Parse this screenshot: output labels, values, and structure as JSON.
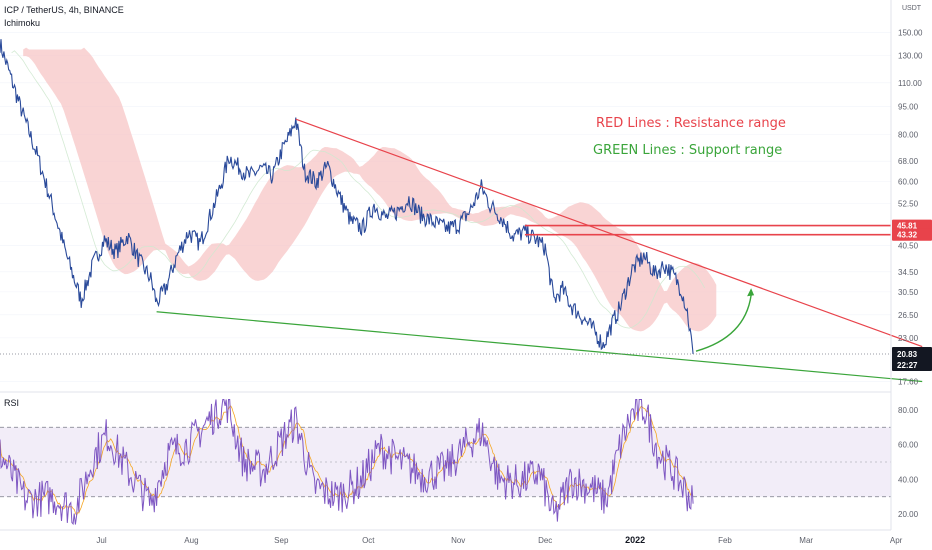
{
  "header": {
    "title": "ICP / TetherUS, 4h, BINANCE",
    "indicator": "Ichimoku",
    "rsi_label": "RSI",
    "currency": "USDT"
  },
  "annotations": {
    "red_text": "RED Lines : Resistance range",
    "green_text": "GREEN Lines : Support range"
  },
  "colors": {
    "red": "#e8434b",
    "green": "#3aa53a",
    "price": "#2a4a9a",
    "cloud": "#f7c6c6",
    "cloud_green": "#cfe8cf",
    "rsi": "#7e57c2",
    "rsi_ma": "#f5a623",
    "rsi_band": "#ede7f6"
  },
  "chart_data": {
    "type": "line",
    "price_axis": {
      "scale": "log",
      "ticks": [
        "150.00",
        "130.00",
        "110.00",
        "95.00",
        "80.00",
        "68.00",
        "60.00",
        "52.50",
        "40.50",
        "34.50",
        "30.50",
        "26.50",
        "23.00",
        "17.60"
      ],
      "tick_values": [
        150,
        130,
        110,
        95,
        80,
        68,
        60,
        52.5,
        40.5,
        34.5,
        30.5,
        26.5,
        23,
        17.6
      ],
      "range": [
        16.5,
        172
      ]
    },
    "time_axis": {
      "labels": [
        "Jul",
        "Aug",
        "Sep",
        "Oct",
        "Nov",
        "Dec",
        "2022",
        "Feb",
        "Mar",
        "Apr"
      ],
      "bold_label": "2022"
    },
    "price_path": [
      [
        "2021-05-27",
        140
      ],
      [
        "2021-06-03",
        95
      ],
      [
        "2021-06-09",
        70
      ],
      [
        "2021-06-14",
        52
      ],
      [
        "2021-06-19",
        38
      ],
      [
        "2021-06-24",
        29
      ],
      [
        "2021-06-28",
        36
      ],
      [
        "2021-07-02",
        42
      ],
      [
        "2021-07-06",
        39
      ],
      [
        "2021-07-10",
        43
      ],
      [
        "2021-07-14",
        37
      ],
      [
        "2021-07-18",
        33
      ],
      [
        "2021-07-20",
        28.5
      ],
      [
        "2021-07-23",
        31
      ],
      [
        "2021-07-27",
        38
      ],
      [
        "2021-07-31",
        44
      ],
      [
        "2021-08-04",
        41
      ],
      [
        "2021-08-08",
        50
      ],
      [
        "2021-08-11",
        58
      ],
      [
        "2021-08-14",
        70
      ],
      [
        "2021-08-17",
        66
      ],
      [
        "2021-08-21",
        62
      ],
      [
        "2021-08-25",
        65
      ],
      [
        "2021-08-29",
        62
      ],
      [
        "2021-09-01",
        72
      ],
      [
        "2021-09-04",
        80
      ],
      [
        "2021-09-06",
        88
      ],
      [
        "2021-09-09",
        64
      ],
      [
        "2021-09-13",
        60
      ],
      [
        "2021-09-17",
        66
      ],
      [
        "2021-09-21",
        55
      ],
      [
        "2021-09-25",
        47
      ],
      [
        "2021-09-29",
        45
      ],
      [
        "2021-10-03",
        52
      ],
      [
        "2021-10-07",
        48
      ],
      [
        "2021-10-11",
        50
      ],
      [
        "2021-10-15",
        54
      ],
      [
        "2021-10-19",
        49
      ],
      [
        "2021-10-23",
        47
      ],
      [
        "2021-10-28",
        45
      ],
      [
        "2021-11-01",
        46
      ],
      [
        "2021-11-05",
        50
      ],
      [
        "2021-11-09",
        58
      ],
      [
        "2021-11-12",
        52
      ],
      [
        "2021-11-16",
        48
      ],
      [
        "2021-11-20",
        43
      ],
      [
        "2021-11-24",
        44
      ],
      [
        "2021-11-28",
        42
      ],
      [
        "2021-12-01",
        40
      ],
      [
        "2021-12-04",
        29
      ],
      [
        "2021-12-07",
        31
      ],
      [
        "2021-12-10",
        28
      ],
      [
        "2021-12-14",
        26
      ],
      [
        "2021-12-18",
        24
      ],
      [
        "2021-12-21",
        22
      ],
      [
        "2021-12-24",
        25
      ],
      [
        "2021-12-27",
        28
      ],
      [
        "2021-12-31",
        35
      ],
      [
        "2022-01-04",
        38
      ],
      [
        "2022-01-08",
        34
      ],
      [
        "2022-01-11",
        36
      ],
      [
        "2022-01-14",
        34
      ],
      [
        "2022-01-17",
        31
      ],
      [
        "2022-01-19",
        27
      ],
      [
        "2022-01-21",
        20.83
      ]
    ],
    "resistance_line": [
      [
        "2021-09-06",
        88
      ],
      [
        "2022-04-10",
        21.8
      ]
    ],
    "support_line": [
      [
        "2021-07-20",
        27
      ],
      [
        "2022-04-10",
        17.6
      ]
    ],
    "resistance_range": [
      43.32,
      45.81
    ],
    "projection_arrow": [
      [
        "2022-01-22",
        21.2
      ],
      [
        "2022-02-10",
        31
      ]
    ],
    "last_price": {
      "value": "20.83",
      "countdown": "22:27"
    },
    "level_tags": [
      "45.81",
      "43.32"
    ],
    "rsi": {
      "ticks": [
        "80.00",
        "60.00",
        "40.00",
        "20.00"
      ],
      "tick_values": [
        80,
        60,
        40,
        20
      ],
      "band": [
        30,
        70
      ],
      "mid": 50,
      "range": [
        12,
        88
      ],
      "path": [
        [
          "2021-05-27",
          55
        ],
        [
          "2021-06-05",
          28
        ],
        [
          "2021-06-14",
          30
        ],
        [
          "2021-06-22",
          22
        ],
        [
          "2021-06-28",
          52
        ],
        [
          "2021-07-03",
          66
        ],
        [
          "2021-07-10",
          45
        ],
        [
          "2021-07-18",
          26
        ],
        [
          "2021-07-24",
          55
        ],
        [
          "2021-07-31",
          60
        ],
        [
          "2021-08-06",
          72
        ],
        [
          "2021-08-13",
          85
        ],
        [
          "2021-08-19",
          50
        ],
        [
          "2021-08-26",
          45
        ],
        [
          "2021-09-01",
          62
        ],
        [
          "2021-09-06",
          74
        ],
        [
          "2021-09-12",
          36
        ],
        [
          "2021-09-20",
          30
        ],
        [
          "2021-09-28",
          38
        ],
        [
          "2021-10-05",
          58
        ],
        [
          "2021-10-12",
          50
        ],
        [
          "2021-10-20",
          42
        ],
        [
          "2021-10-28",
          46
        ],
        [
          "2021-11-04",
          60
        ],
        [
          "2021-11-09",
          68
        ],
        [
          "2021-11-15",
          40
        ],
        [
          "2021-11-22",
          38
        ],
        [
          "2021-11-29",
          44
        ],
        [
          "2021-12-04",
          18
        ],
        [
          "2021-12-10",
          40
        ],
        [
          "2021-12-17",
          35
        ],
        [
          "2021-12-22",
          28
        ],
        [
          "2021-12-27",
          60
        ],
        [
          "2021-12-31",
          78
        ],
        [
          "2022-01-04",
          82
        ],
        [
          "2022-01-09",
          55
        ],
        [
          "2022-01-14",
          45
        ],
        [
          "2022-01-19",
          32
        ],
        [
          "2022-01-21",
          26
        ]
      ]
    }
  }
}
